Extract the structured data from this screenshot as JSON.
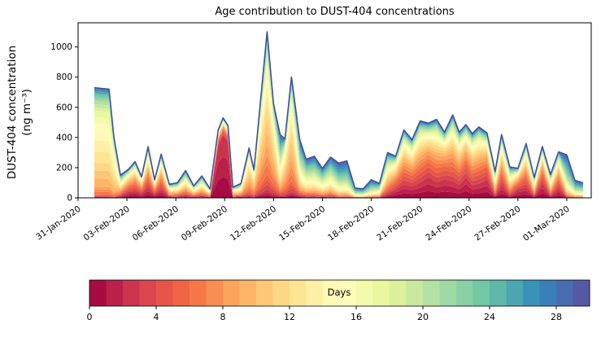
{
  "chart_data": {
    "type": "area",
    "subtype": "stacked_area_by_age",
    "title": "Age contribution to DUST-404 concentrations",
    "ylabel_line1": "DUST-404 concentration",
    "ylabel_line2": "(ng m⁻³)",
    "xlabel": "",
    "ylim": [
      0,
      1160
    ],
    "yticks": [
      0,
      200,
      400,
      600,
      800,
      1000
    ],
    "xtick_days": [
      0,
      3,
      6,
      9,
      12,
      15,
      18,
      21,
      24,
      27,
      30
    ],
    "xtick_labels": [
      "31-Jan-2020",
      "03-Feb-2020",
      "06-Feb-2020",
      "09-Feb-2020",
      "12-Feb-2020",
      "15-Feb-2020",
      "18-Feb-2020",
      "21-Feb-2020",
      "24-Feb-2020",
      "27-Feb-2020",
      "01-Mar-2020"
    ],
    "x_axis_range_days": [
      0,
      31.5
    ],
    "grid": false,
    "legend": "colorbar",
    "x_days": [
      1.0,
      1.9,
      2.2,
      2.6,
      3.1,
      3.5,
      3.9,
      4.3,
      4.7,
      5.1,
      5.6,
      6.1,
      6.6,
      7.1,
      7.6,
      8.1,
      8.6,
      8.9,
      9.2,
      9.5,
      10.0,
      10.5,
      10.8,
      11.6,
      12.0,
      12.4,
      12.7,
      13.1,
      13.6,
      14.0,
      14.5,
      15.0,
      15.5,
      16.0,
      16.5,
      17.0,
      17.5,
      18.0,
      18.5,
      19.0,
      19.5,
      20.0,
      20.5,
      21.0,
      21.5,
      22.0,
      22.5,
      23.0,
      23.4,
      23.8,
      24.2,
      24.6,
      25.1,
      25.6,
      26.0,
      26.5,
      27.0,
      27.5,
      28.0,
      28.5,
      29.0,
      29.5,
      30.0,
      30.5,
      31.0
    ],
    "totals": [
      730,
      720,
      400,
      150,
      190,
      240,
      140,
      340,
      120,
      290,
      90,
      100,
      180,
      80,
      145,
      60,
      450,
      530,
      480,
      70,
      95,
      330,
      185,
      1100,
      620,
      420,
      390,
      800,
      390,
      255,
      275,
      195,
      270,
      230,
      245,
      65,
      60,
      120,
      95,
      300,
      275,
      450,
      385,
      510,
      495,
      520,
      435,
      550,
      435,
      485,
      425,
      470,
      430,
      175,
      420,
      205,
      195,
      360,
      135,
      340,
      155,
      305,
      285,
      115,
      100
    ],
    "mix_keys": [
      "A",
      "A",
      "A",
      "G",
      "C",
      "C",
      "C",
      "C",
      "C",
      "C",
      "G",
      "G",
      "G",
      "G",
      "G",
      "G",
      "B",
      "B",
      "B",
      "G",
      "G",
      "D",
      "D",
      "D",
      "D",
      "E",
      "D",
      "D",
      "E",
      "E",
      "E",
      "E",
      "E",
      "F",
      "F",
      "F",
      "F",
      "F",
      "E",
      "G",
      "C",
      "C",
      "C",
      "C",
      "H",
      "C",
      "H",
      "C",
      "C",
      "H",
      "C",
      "C",
      "H",
      "G",
      "C",
      "G",
      "H",
      "C",
      "G",
      "H",
      "G",
      "C",
      "F",
      "F",
      "F"
    ],
    "mix_profiles": {
      "A": [
        0.01,
        0.02,
        0.07,
        0.22,
        0.3,
        0.17,
        0.09,
        0.06,
        0.04,
        0.02
      ],
      "B": [
        0.78,
        0.07,
        0.04,
        0.03,
        0.02,
        0.02,
        0.01,
        0.01,
        0.01,
        0.01
      ],
      "C": [
        0.2,
        0.18,
        0.16,
        0.13,
        0.1,
        0.07,
        0.06,
        0.04,
        0.03,
        0.03
      ],
      "D": [
        0.05,
        0.09,
        0.18,
        0.24,
        0.18,
        0.1,
        0.07,
        0.04,
        0.03,
        0.02
      ],
      "E": [
        0.04,
        0.05,
        0.07,
        0.1,
        0.12,
        0.14,
        0.14,
        0.14,
        0.11,
        0.09
      ],
      "F": [
        0.02,
        0.03,
        0.05,
        0.07,
        0.08,
        0.11,
        0.13,
        0.17,
        0.19,
        0.15
      ],
      "G": [
        0.09,
        0.11,
        0.13,
        0.14,
        0.13,
        0.11,
        0.1,
        0.08,
        0.06,
        0.05
      ],
      "H": [
        0.28,
        0.2,
        0.15,
        0.11,
        0.08,
        0.05,
        0.04,
        0.04,
        0.03,
        0.02
      ]
    },
    "age_bins": [
      {
        "label": "0-3 days",
        "color": "#ba2049"
      },
      {
        "label": "3-6 days",
        "color": "#e45649"
      },
      {
        "label": "6-9 days",
        "color": "#f98e52"
      },
      {
        "label": "9-12 days",
        "color": "#fec776"
      },
      {
        "label": "12-15 days",
        "color": "#fff0a5"
      },
      {
        "label": "15-18 days",
        "color": "#f2faab"
      },
      {
        "label": "18-21 days",
        "color": "#c8e99e"
      },
      {
        "label": "21-24 days",
        "color": "#88cfa4"
      },
      {
        "label": "24-27 days",
        "color": "#4ca5b1"
      },
      {
        "label": "27-30 days",
        "color": "#486bb0"
      }
    ],
    "total_line_color": "#3f519e",
    "colormap_anchors": [
      {
        "pos": 0.0,
        "color": "#9e0142"
      },
      {
        "pos": 0.1,
        "color": "#d53e4f"
      },
      {
        "pos": 0.2,
        "color": "#f46d43"
      },
      {
        "pos": 0.3,
        "color": "#fdae61"
      },
      {
        "pos": 0.4,
        "color": "#fee08b"
      },
      {
        "pos": 0.5,
        "color": "#ffffbf"
      },
      {
        "pos": 0.6,
        "color": "#e6f598"
      },
      {
        "pos": 0.7,
        "color": "#abdda4"
      },
      {
        "pos": 0.8,
        "color": "#66c2a5"
      },
      {
        "pos": 0.9,
        "color": "#3288bd"
      },
      {
        "pos": 1.0,
        "color": "#5e4fa2"
      }
    ],
    "colorbar": {
      "label": "Days",
      "vmin": 0,
      "vmax": 30,
      "ticks": [
        0,
        4,
        8,
        12,
        16,
        20,
        24,
        28
      ],
      "n_cells": 30
    }
  }
}
